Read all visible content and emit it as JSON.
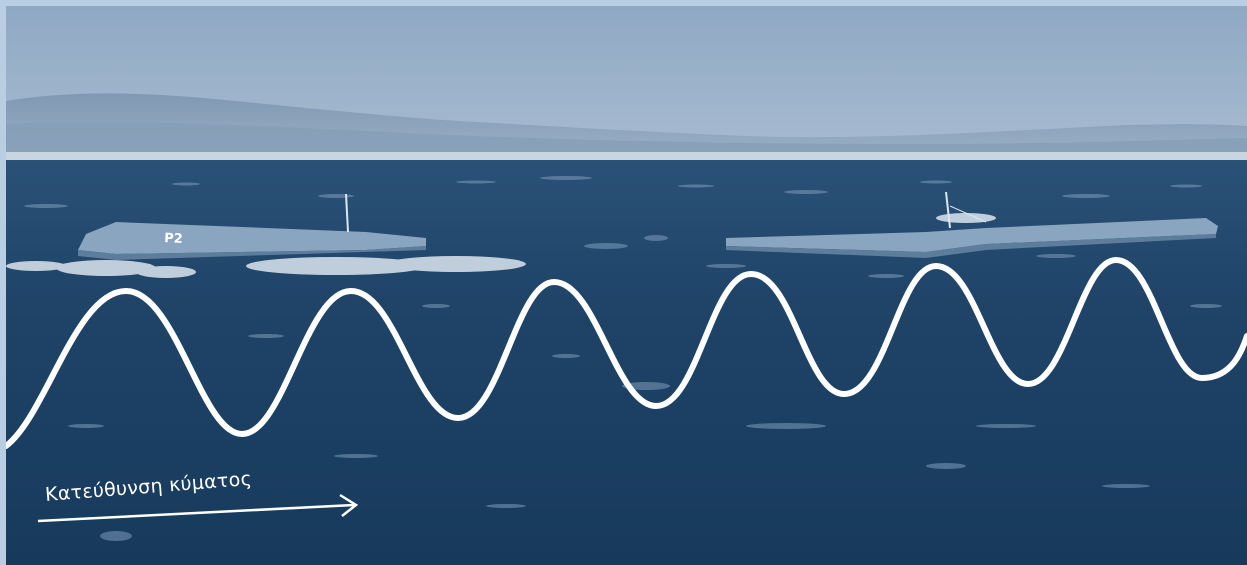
{
  "caption": {
    "text": "Κατεύθυνση κύματος"
  },
  "hull_marking": "P2",
  "colors": {
    "frame": "#b9cde3",
    "sky": "#8ea6c1",
    "sea": "#1d4266",
    "wave_line": "#ffffff",
    "device_hull": "#8aa5c0"
  },
  "icons": {
    "arrow": "right-arrow-icon",
    "wave": "sine-wave-icon"
  }
}
